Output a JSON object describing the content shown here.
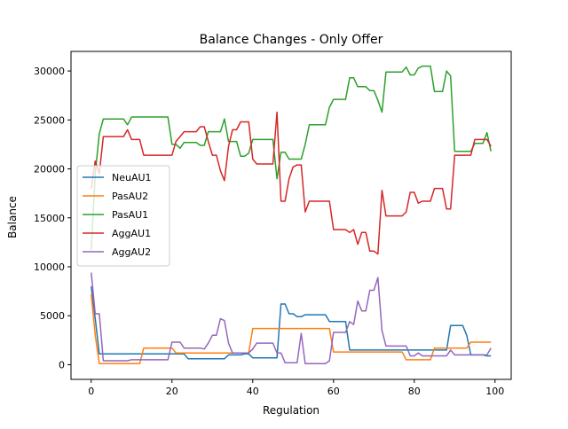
{
  "chart_data": {
    "type": "line",
    "title": "Balance Changes - Only Offer",
    "xlabel": "Regulation",
    "ylabel": "Balance",
    "xlim": [
      -5,
      104
    ],
    "ylim": [
      -1500,
      32000
    ],
    "xticks": [
      0,
      20,
      40,
      60,
      80,
      100
    ],
    "yticks": [
      0,
      5000,
      10000,
      15000,
      20000,
      25000,
      30000
    ],
    "grid": false,
    "legend_position": "center-left",
    "series": [
      {
        "name": "NeuAU1",
        "color": "#1f77b4",
        "x": [
          0,
          1,
          2,
          3,
          4,
          5,
          6,
          7,
          8,
          9,
          10,
          11,
          12,
          13,
          14,
          15,
          16,
          17,
          18,
          19,
          20,
          21,
          22,
          23,
          24,
          25,
          26,
          27,
          28,
          29,
          30,
          31,
          32,
          33,
          34,
          35,
          36,
          37,
          38,
          39,
          40,
          41,
          42,
          43,
          44,
          45,
          46,
          47,
          48,
          49,
          50,
          51,
          52,
          53,
          54,
          55,
          56,
          57,
          58,
          59,
          60,
          61,
          62,
          63,
          64,
          65,
          66,
          67,
          68,
          69,
          70,
          71,
          72,
          73,
          74,
          75,
          76,
          77,
          78,
          79,
          80,
          81,
          82,
          83,
          84,
          85,
          86,
          87,
          88,
          89,
          90,
          91,
          92,
          93,
          94,
          95,
          96,
          97,
          98,
          99
        ],
        "y": [
          8000,
          4700,
          1100,
          1100,
          1100,
          1100,
          1100,
          1100,
          1100,
          1100,
          1100,
          1100,
          1100,
          1100,
          1100,
          1100,
          1100,
          1100,
          1100,
          1100,
          1100,
          1100,
          1100,
          1100,
          600,
          600,
          600,
          600,
          600,
          600,
          600,
          600,
          600,
          600,
          1000,
          1000,
          1000,
          1000,
          1100,
          1100,
          700,
          700,
          700,
          700,
          700,
          700,
          700,
          6200,
          6200,
          5200,
          5200,
          4900,
          4900,
          5100,
          5100,
          5100,
          5100,
          5100,
          5100,
          4400,
          4400,
          4400,
          4400,
          4400,
          1500,
          1500,
          1500,
          1500,
          1500,
          1500,
          1500,
          1500,
          1500,
          1500,
          1500,
          1500,
          1500,
          1500,
          1500,
          1500,
          1500,
          1500,
          1500,
          1500,
          1500,
          1500,
          1500,
          1500,
          1500,
          4000,
          4000,
          4000,
          4000,
          3000,
          1000,
          1000,
          1000,
          1000,
          900,
          900
        ]
      },
      {
        "name": "PasAU2",
        "color": "#ff7f0e",
        "x": [
          0,
          1,
          2,
          3,
          4,
          5,
          6,
          7,
          8,
          9,
          10,
          11,
          12,
          13,
          14,
          15,
          16,
          17,
          18,
          19,
          20,
          21,
          22,
          23,
          24,
          25,
          26,
          27,
          28,
          29,
          30,
          31,
          32,
          33,
          34,
          35,
          36,
          37,
          38,
          39,
          40,
          41,
          42,
          43,
          44,
          45,
          46,
          47,
          48,
          49,
          50,
          51,
          52,
          53,
          54,
          55,
          56,
          57,
          58,
          59,
          60,
          61,
          62,
          63,
          64,
          65,
          66,
          67,
          68,
          69,
          70,
          71,
          72,
          73,
          74,
          75,
          76,
          77,
          78,
          79,
          80,
          81,
          82,
          83,
          84,
          85,
          86,
          87,
          88,
          89,
          90,
          91,
          92,
          93,
          94,
          95,
          96,
          97,
          98,
          99
        ],
        "y": [
          7200,
          3000,
          100,
          100,
          100,
          100,
          100,
          100,
          100,
          100,
          100,
          100,
          100,
          1700,
          1700,
          1700,
          1700,
          1700,
          1700,
          1700,
          1700,
          1200,
          1200,
          1200,
          1200,
          1200,
          1200,
          1200,
          1200,
          1200,
          1200,
          1200,
          1200,
          1200,
          1200,
          1200,
          1200,
          1200,
          1200,
          1200,
          3700,
          3700,
          3700,
          3700,
          3700,
          3700,
          3700,
          3700,
          3700,
          3700,
          3700,
          3700,
          3700,
          3700,
          3700,
          3700,
          3700,
          3700,
          3700,
          3700,
          1300,
          1300,
          1300,
          1300,
          1300,
          1300,
          1300,
          1300,
          1300,
          1300,
          1300,
          1300,
          1300,
          1300,
          1300,
          1300,
          1300,
          1300,
          500,
          500,
          500,
          500,
          500,
          500,
          500,
          1700,
          1700,
          1700,
          1700,
          1700,
          1700,
          1700,
          1700,
          1700,
          2300,
          2300,
          2300,
          2300,
          2300,
          2300
        ]
      },
      {
        "name": "PasAU1",
        "color": "#2ca02c",
        "x": [
          0,
          1,
          2,
          3,
          4,
          5,
          6,
          7,
          8,
          9,
          10,
          11,
          12,
          13,
          14,
          15,
          16,
          17,
          18,
          19,
          20,
          21,
          22,
          23,
          24,
          25,
          26,
          27,
          28,
          29,
          30,
          31,
          32,
          33,
          34,
          35,
          36,
          37,
          38,
          39,
          40,
          41,
          42,
          43,
          44,
          45,
          46,
          47,
          48,
          49,
          50,
          51,
          52,
          53,
          54,
          55,
          56,
          57,
          58,
          59,
          60,
          61,
          62,
          63,
          64,
          65,
          66,
          67,
          68,
          69,
          70,
          71,
          72,
          73,
          74,
          75,
          76,
          77,
          78,
          79,
          80,
          81,
          82,
          83,
          84,
          85,
          86,
          87,
          88,
          89,
          90,
          91,
          92,
          93,
          94,
          95,
          96,
          97,
          98,
          99
        ],
        "y": [
          11700,
          19500,
          23600,
          25100,
          25100,
          25100,
          25100,
          25100,
          25100,
          24500,
          25300,
          25300,
          25300,
          25300,
          25300,
          25300,
          25300,
          25300,
          25300,
          25300,
          22500,
          22500,
          22100,
          22700,
          22700,
          22700,
          22700,
          22400,
          22400,
          23800,
          23800,
          23800,
          23800,
          25100,
          22800,
          22800,
          22800,
          21300,
          21300,
          21600,
          23000,
          23000,
          23000,
          23000,
          23000,
          23000,
          19000,
          21700,
          21700,
          21000,
          21000,
          21000,
          21000,
          22500,
          24500,
          24500,
          24500,
          24500,
          24500,
          26300,
          27100,
          27100,
          27100,
          27100,
          29300,
          29300,
          28400,
          28400,
          28400,
          28000,
          28000,
          27000,
          25800,
          29900,
          29900,
          29900,
          29900,
          29900,
          30400,
          29600,
          29600,
          30300,
          30500,
          30500,
          30500,
          27900,
          27900,
          27900,
          30000,
          29500,
          21800,
          21800,
          21800,
          21800,
          21800,
          22600,
          22600,
          22600,
          23700,
          21800
        ]
      },
      {
        "name": "AggAU1",
        "color": "#d62728",
        "x": [
          0,
          1,
          2,
          3,
          4,
          5,
          6,
          7,
          8,
          9,
          10,
          11,
          12,
          13,
          14,
          15,
          16,
          17,
          18,
          19,
          20,
          21,
          22,
          23,
          24,
          25,
          26,
          27,
          28,
          29,
          30,
          31,
          32,
          33,
          34,
          35,
          36,
          37,
          38,
          39,
          40,
          41,
          42,
          43,
          44,
          45,
          46,
          47,
          48,
          49,
          50,
          51,
          52,
          53,
          54,
          55,
          56,
          57,
          58,
          59,
          60,
          61,
          62,
          63,
          64,
          65,
          66,
          67,
          68,
          69,
          70,
          71,
          72,
          73,
          74,
          75,
          76,
          77,
          78,
          79,
          80,
          81,
          82,
          83,
          84,
          85,
          86,
          87,
          88,
          89,
          90,
          91,
          92,
          93,
          94,
          95,
          96,
          97,
          98,
          99
        ],
        "y": [
          18000,
          20800,
          19500,
          23300,
          23300,
          23300,
          23300,
          23300,
          23300,
          24000,
          23000,
          23000,
          23000,
          21400,
          21400,
          21400,
          21400,
          21400,
          21400,
          21400,
          21400,
          22800,
          23300,
          23800,
          23800,
          23800,
          23800,
          24300,
          24300,
          22800,
          21400,
          21400,
          19800,
          18800,
          22300,
          24000,
          24000,
          24800,
          24800,
          24800,
          21000,
          20500,
          20500,
          20500,
          20500,
          20500,
          25800,
          16700,
          16700,
          19000,
          20200,
          20400,
          20400,
          15600,
          16700,
          16700,
          16700,
          16700,
          16700,
          16700,
          13800,
          13800,
          13800,
          13800,
          13500,
          13800,
          12300,
          13500,
          13500,
          11600,
          11600,
          11300,
          17800,
          15200,
          15200,
          15200,
          15200,
          15200,
          15600,
          17600,
          17600,
          16500,
          16700,
          16700,
          16700,
          18000,
          18000,
          18000,
          15900,
          15900,
          21400,
          21400,
          21400,
          21400,
          21400,
          23000,
          23000,
          23000,
          23000,
          22300
        ]
      },
      {
        "name": "AggAU2",
        "color": "#9467bd",
        "x": [
          0,
          1,
          2,
          3,
          4,
          5,
          6,
          7,
          8,
          9,
          10,
          11,
          12,
          13,
          14,
          15,
          16,
          17,
          18,
          19,
          20,
          21,
          22,
          23,
          24,
          25,
          26,
          27,
          28,
          29,
          30,
          31,
          32,
          33,
          34,
          35,
          36,
          37,
          38,
          39,
          40,
          41,
          42,
          43,
          44,
          45,
          46,
          47,
          48,
          49,
          50,
          51,
          52,
          53,
          54,
          55,
          56,
          57,
          58,
          59,
          60,
          61,
          62,
          63,
          64,
          65,
          66,
          67,
          68,
          69,
          70,
          71,
          72,
          73,
          74,
          75,
          76,
          77,
          78,
          79,
          80,
          81,
          82,
          83,
          84,
          85,
          86,
          87,
          88,
          89,
          90,
          91,
          92,
          93,
          94,
          95,
          96,
          97,
          98,
          99
        ],
        "y": [
          9400,
          5200,
          5200,
          400,
          400,
          400,
          400,
          400,
          400,
          400,
          500,
          500,
          500,
          500,
          500,
          500,
          500,
          500,
          500,
          500,
          2300,
          2300,
          2300,
          1700,
          1700,
          1700,
          1700,
          1700,
          1600,
          2200,
          3000,
          3000,
          4700,
          4500,
          2200,
          1200,
          1200,
          1200,
          1200,
          1200,
          1600,
          2200,
          2200,
          2200,
          2200,
          2200,
          1200,
          1200,
          200,
          200,
          200,
          200,
          3200,
          100,
          100,
          100,
          100,
          100,
          100,
          400,
          3300,
          3300,
          3300,
          3300,
          4400,
          4100,
          6500,
          5500,
          5500,
          7600,
          7600,
          8900,
          3500,
          1900,
          1900,
          1900,
          1900,
          1900,
          1900,
          900,
          900,
          1200,
          900,
          900,
          900,
          900,
          900,
          900,
          900,
          1500,
          1000,
          1000,
          1000,
          1000,
          1000,
          1000,
          1000,
          1000,
          1000,
          1700
        ]
      }
    ]
  }
}
